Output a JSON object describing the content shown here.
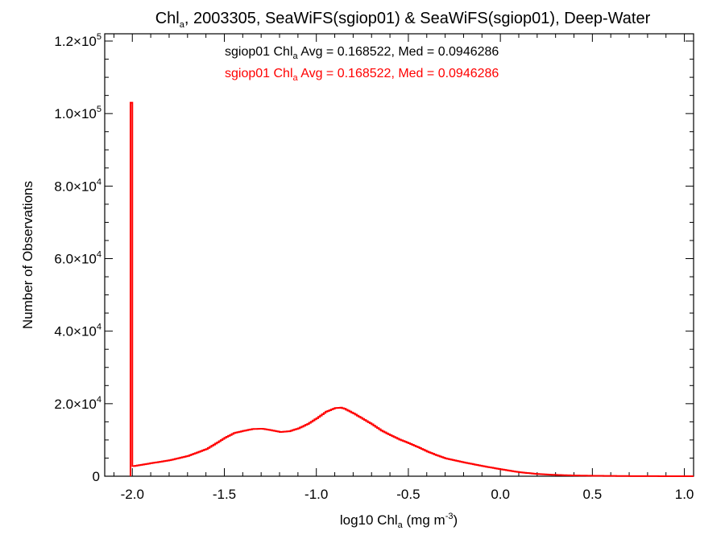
{
  "chart_data": {
    "type": "histogram",
    "title": {
      "prefix": "Chl",
      "subscript": "a",
      "suffix": ", 2003305, SeaWiFS(sgiop01) & SeaWiFS(sgiop01), Deep-Water"
    },
    "xlabel": {
      "prefix": "log10 Chl",
      "subscript": "a",
      "middle": " (mg m",
      "superscript": "-3",
      "suffix": ")"
    },
    "ylabel": "Number of Observations",
    "xlim": [
      -2.15,
      1.05
    ],
    "ylim": [
      0,
      122000
    ],
    "x_ticks": [
      {
        "value": -2.0,
        "label": "-2.0"
      },
      {
        "value": -1.5,
        "label": "-1.5"
      },
      {
        "value": -1.0,
        "label": "-1.0"
      },
      {
        "value": -0.5,
        "label": "-0.5"
      },
      {
        "value": 0.0,
        "label": "0.0"
      },
      {
        "value": 0.5,
        "label": "0.5"
      },
      {
        "value": 1.0,
        "label": "1.0"
      }
    ],
    "y_ticks": [
      {
        "value": 0,
        "mantissa": "0",
        "exponent": ""
      },
      {
        "value": 20000,
        "mantissa": "2.0×10",
        "exponent": "4"
      },
      {
        "value": 40000,
        "mantissa": "4.0×10",
        "exponent": "4"
      },
      {
        "value": 60000,
        "mantissa": "6.0×10",
        "exponent": "4"
      },
      {
        "value": 80000,
        "mantissa": "8.0×10",
        "exponent": "4"
      },
      {
        "value": 100000,
        "mantissa": "1.0×10",
        "exponent": "5"
      },
      {
        "value": 120000,
        "mantissa": "1.2×10",
        "exponent": "5"
      }
    ],
    "legend": [
      {
        "name_prefix": "sgiop01 Chl",
        "name_subscript": "a",
        "stats": " Avg = 0.168522, Med = 0.0946286",
        "color": "#000000"
      },
      {
        "name_prefix": "sgiop01 Chl",
        "name_subscript": "a",
        "stats": " Avg = 0.168522, Med = 0.0946286",
        "color": "#ff0000"
      }
    ],
    "legend_placement": "top-center",
    "grid": false,
    "series": [
      {
        "color": "#ff0000",
        "spike": {
          "x": -2.0,
          "y": 103000
        },
        "points": [
          [
            -1.995,
            2800
          ],
          [
            -1.9,
            3600
          ],
          [
            -1.8,
            4400
          ],
          [
            -1.7,
            5600
          ],
          [
            -1.6,
            7500
          ],
          [
            -1.55,
            9000
          ],
          [
            -1.5,
            10600
          ],
          [
            -1.45,
            11900
          ],
          [
            -1.4,
            12500
          ],
          [
            -1.35,
            13000
          ],
          [
            -1.3,
            13100
          ],
          [
            -1.25,
            12700
          ],
          [
            -1.2,
            12200
          ],
          [
            -1.15,
            12400
          ],
          [
            -1.1,
            13200
          ],
          [
            -1.05,
            14400
          ],
          [
            -1.0,
            16000
          ],
          [
            -0.95,
            17800
          ],
          [
            -0.9,
            18800
          ],
          [
            -0.87,
            18900
          ],
          [
            -0.85,
            18600
          ],
          [
            -0.8,
            17300
          ],
          [
            -0.75,
            15800
          ],
          [
            -0.7,
            14300
          ],
          [
            -0.65,
            12600
          ],
          [
            -0.6,
            11300
          ],
          [
            -0.55,
            10100
          ],
          [
            -0.5,
            9100
          ],
          [
            -0.45,
            8000
          ],
          [
            -0.4,
            6800
          ],
          [
            -0.35,
            5800
          ],
          [
            -0.3,
            4900
          ],
          [
            -0.2,
            3800
          ],
          [
            -0.1,
            2800
          ],
          [
            0.0,
            1900
          ],
          [
            0.1,
            1100
          ],
          [
            0.2,
            600
          ],
          [
            0.3,
            350
          ],
          [
            0.4,
            200
          ],
          [
            0.5,
            120
          ],
          [
            0.6,
            80
          ],
          [
            0.7,
            40
          ],
          [
            0.8,
            20
          ],
          [
            0.9,
            10
          ],
          [
            1.0,
            5
          ],
          [
            1.05,
            0
          ]
        ]
      }
    ]
  }
}
